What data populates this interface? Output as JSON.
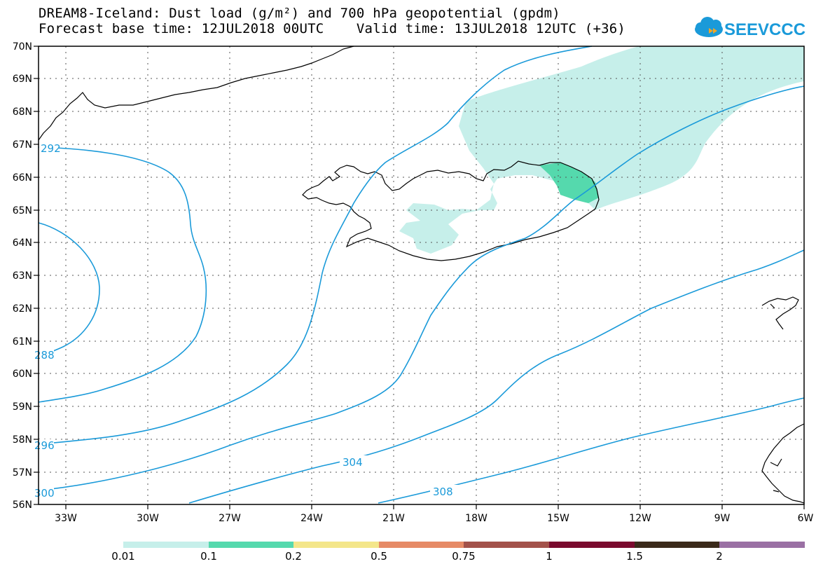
{
  "header": {
    "line1": "DREAM8-Iceland: Dust load (g/m²) and 700 hPa geopotential (gpdm)",
    "line2": "Forecast base time: 12JUL2018 00UTC    Valid time: 13JUL2018 12UTC (+36)"
  },
  "logo": {
    "text": "SEEVCCC",
    "icon": "cloud-icon",
    "color": "#1a9ad9"
  },
  "map": {
    "lat_labels": [
      "70N",
      "69N",
      "68N",
      "67N",
      "66N",
      "65N",
      "64N",
      "63N",
      "62N",
      "61N",
      "60N",
      "59N",
      "58N",
      "57N",
      "56N"
    ],
    "lon_labels": [
      "33W",
      "30W",
      "27W",
      "24W",
      "21W",
      "18W",
      "15W",
      "12W",
      "9W",
      "6W"
    ],
    "contour_labels": [
      "292",
      "288",
      "296",
      "300",
      "304",
      "308"
    ],
    "contour_color": "#1a9ad9",
    "dust_color_light": "#c6efea",
    "dust_color_mid": "#55d9ad"
  },
  "colorbar": {
    "labels": [
      "0.01",
      "0.1",
      "0.2",
      "0.5",
      "0.75",
      "1",
      "1.5",
      "2"
    ],
    "colors": [
      "#c6efea",
      "#55d9ad",
      "#f4e68a",
      "#e68a66",
      "#a3524a",
      "#7a0a2e",
      "#3a2a1a",
      "#9a70a4"
    ]
  }
}
